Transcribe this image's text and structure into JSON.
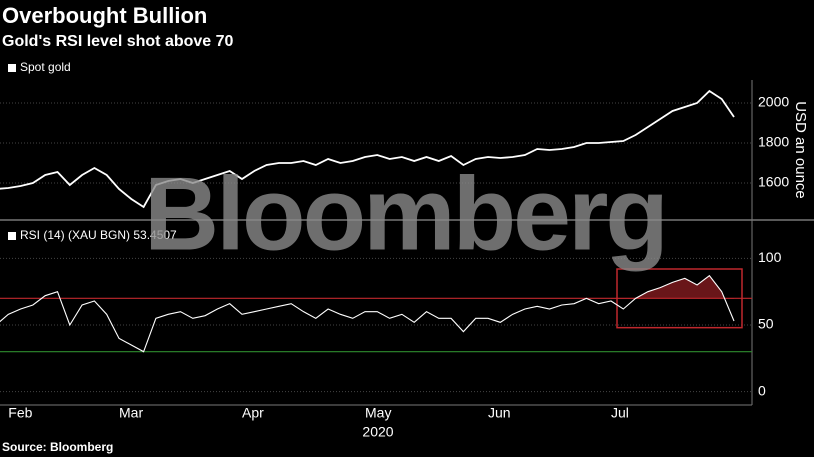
{
  "title": "Overbought Bullion",
  "subtitle": "Gold's RSI level shot above 70",
  "source": "Source: Bloomberg",
  "watermark": "Bloomberg",
  "chart_data": [
    {
      "type": "line",
      "ylabel": "USD an ounce",
      "series": [
        {
          "name": "Spot gold",
          "color": "#ffffff",
          "values": [
            1570,
            1575,
            1585,
            1600,
            1640,
            1655,
            1590,
            1640,
            1675,
            1640,
            1570,
            1520,
            1480,
            1590,
            1610,
            1620,
            1600,
            1620,
            1640,
            1660,
            1620,
            1660,
            1690,
            1700,
            1700,
            1710,
            1690,
            1720,
            1700,
            1710,
            1730,
            1740,
            1720,
            1730,
            1710,
            1730,
            1710,
            1735,
            1690,
            1720,
            1730,
            1725,
            1730,
            1740,
            1770,
            1765,
            1770,
            1780,
            1800,
            1800,
            1805,
            1810,
            1840,
            1880,
            1920,
            1960,
            1980,
            2000,
            2060,
            2020,
            1930
          ]
        }
      ],
      "ylim": [
        1425,
        2105
      ],
      "yticks": [
        1600,
        1800,
        2000
      ],
      "grid": true
    },
    {
      "type": "line",
      "categories": [
        null,
        "Feb",
        null,
        null,
        null,
        null,
        null,
        null,
        null,
        null,
        "Mar",
        null,
        null,
        null,
        null,
        null,
        null,
        null,
        null,
        null,
        "Apr",
        null,
        null,
        null,
        null,
        null,
        null,
        null,
        null,
        null,
        "May",
        null,
        null,
        null,
        null,
        null,
        null,
        null,
        null,
        null,
        "Jun",
        null,
        null,
        null,
        null,
        null,
        null,
        null,
        null,
        null,
        "Jul",
        null,
        null,
        null,
        null,
        null,
        null,
        null,
        null,
        null,
        null
      ],
      "year_label": "2020",
      "series": [
        {
          "name": "RSI (14) (XAU BGN) 53.4507",
          "color": "#ffffff",
          "values": [
            50,
            58,
            62,
            65,
            72,
            75,
            50,
            65,
            68,
            58,
            40,
            35,
            30,
            55,
            58,
            60,
            55,
            57,
            62,
            66,
            58,
            60,
            62,
            64,
            66,
            60,
            55,
            62,
            58,
            55,
            60,
            60,
            55,
            58,
            52,
            60,
            55,
            55,
            45,
            55,
            55,
            52,
            58,
            62,
            64,
            62,
            65,
            66,
            70,
            66,
            68,
            62,
            70,
            75,
            78,
            82,
            85,
            80,
            87,
            75,
            53
          ]
        }
      ],
      "reference_lines": [
        {
          "value": 70,
          "color": "#c0282d"
        },
        {
          "value": 30,
          "color": "#2e8b2e"
        }
      ],
      "highlight_range": [
        48,
        92
      ],
      "ylim": [
        -10,
        110
      ],
      "yticks": [
        0,
        50,
        100
      ],
      "grid": true
    }
  ]
}
